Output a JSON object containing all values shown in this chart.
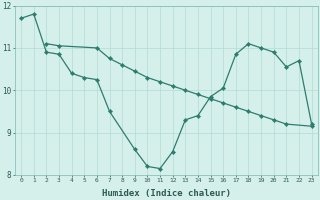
{
  "title": "",
  "xlabel": "Humidex (Indice chaleur)",
  "ylabel": "",
  "background_color": "#d5f0eb",
  "grid_color": "#b8ddd7",
  "line_color": "#2d7d6e",
  "series1_x": [
    0,
    1,
    2,
    3,
    4,
    5,
    6,
    7,
    9,
    10,
    11,
    12,
    13,
    14,
    15,
    16,
    17,
    18,
    19,
    20,
    21,
    22,
    23
  ],
  "series1_y": [
    11.7,
    11.8,
    10.9,
    10.85,
    10.4,
    10.3,
    10.25,
    9.5,
    8.6,
    8.2,
    8.15,
    8.55,
    9.3,
    9.4,
    9.85,
    10.05,
    10.85,
    11.1,
    11.0,
    10.9,
    10.55,
    10.7,
    9.2
  ],
  "series2_x": [
    2,
    3,
    6,
    7,
    8,
    9,
    10,
    11,
    12,
    13,
    14,
    15,
    16,
    17,
    18,
    19,
    20,
    21,
    23
  ],
  "series2_y": [
    11.1,
    11.05,
    11.0,
    10.75,
    10.6,
    10.45,
    10.3,
    10.2,
    10.1,
    10.0,
    9.9,
    9.8,
    9.7,
    9.6,
    9.5,
    9.4,
    9.3,
    9.2,
    9.15
  ],
  "ylim": [
    8.0,
    12.0
  ],
  "xlim": [
    -0.5,
    23.5
  ],
  "yticks": [
    8,
    9,
    10,
    11,
    12
  ],
  "xticks": [
    0,
    1,
    2,
    3,
    4,
    5,
    6,
    7,
    8,
    9,
    10,
    11,
    12,
    13,
    14,
    15,
    16,
    17,
    18,
    19,
    20,
    21,
    22,
    23
  ]
}
